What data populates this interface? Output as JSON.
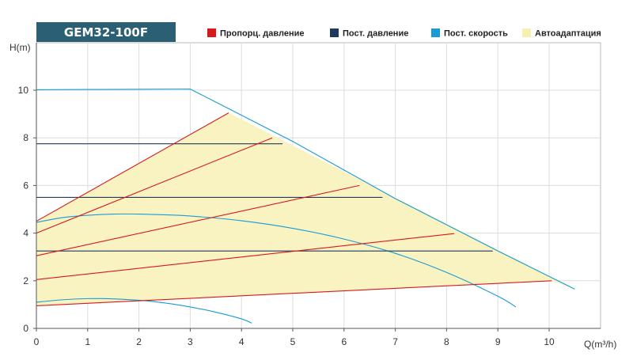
{
  "chart_data": {
    "type": "line",
    "title": "GEM32-100F",
    "xlabel": "Q(m³/h)",
    "ylabel": "H(m)",
    "xlim": [
      0,
      11
    ],
    "ylim": [
      0,
      11
    ],
    "xticks": [
      0,
      1,
      2,
      3,
      4,
      5,
      6,
      7,
      8,
      9,
      10
    ],
    "yticks": [
      0,
      2,
      4,
      6,
      8,
      10
    ],
    "grid": true,
    "legend_position": "top",
    "legend": [
      {
        "label": "Пропорц. давление",
        "color": "#d7191c"
      },
      {
        "label": "Пост. давление",
        "color": "#1f3a5f"
      },
      {
        "label": "Пост. скорость",
        "color": "#1a9ad6"
      },
      {
        "label": "Автоадаптация",
        "color": "#f7efb0"
      }
    ],
    "autoadapt_area": {
      "color": "#f9f3c2",
      "points": [
        [
          0,
          4.5
        ],
        [
          3.75,
          9.05
        ],
        [
          10.5,
          1.65
        ],
        [
          10.05,
          2.0
        ],
        [
          0,
          0.95
        ]
      ]
    },
    "series": [
      {
        "group": "Пост. скорость",
        "color": "#1a9ad6",
        "points": [
          [
            0,
            10.02
          ],
          [
            1,
            10.03
          ],
          [
            2,
            10.04
          ],
          [
            3,
            10.05
          ],
          [
            5,
            7.85
          ],
          [
            7,
            5.45
          ],
          [
            9,
            3.25
          ],
          [
            10.5,
            1.65
          ]
        ]
      },
      {
        "group": "Пост. скорость",
        "color": "#1a9ad6",
        "points": [
          [
            0,
            4.45
          ],
          [
            0.5,
            4.65
          ],
          [
            1,
            4.75
          ],
          [
            1.5,
            4.8
          ],
          [
            2,
            4.8
          ],
          [
            2.5,
            4.77
          ],
          [
            3,
            4.72
          ],
          [
            4,
            4.52
          ],
          [
            5,
            4.2
          ],
          [
            6,
            3.75
          ],
          [
            7,
            3.15
          ],
          [
            8,
            2.35
          ],
          [
            9,
            1.35
          ],
          [
            9.35,
            0.9
          ]
        ]
      },
      {
        "group": "Пост. скорость",
        "color": "#1a9ad6",
        "points": [
          [
            0,
            1.1
          ],
          [
            0.5,
            1.2
          ],
          [
            1,
            1.25
          ],
          [
            1.5,
            1.24
          ],
          [
            2,
            1.18
          ],
          [
            2.5,
            1.07
          ],
          [
            3,
            0.9
          ],
          [
            3.5,
            0.68
          ],
          [
            4,
            0.4
          ],
          [
            4.2,
            0.22
          ]
        ]
      },
      {
        "group": "Пост. давление",
        "color": "#1f3a5f",
        "points": [
          [
            0,
            7.75
          ],
          [
            4.8,
            7.75
          ]
        ]
      },
      {
        "group": "Пост. давление",
        "color": "#1f3a5f",
        "points": [
          [
            0,
            5.5
          ],
          [
            6.75,
            5.5
          ]
        ]
      },
      {
        "group": "Пост. давление",
        "color": "#1f3a5f",
        "points": [
          [
            0,
            3.25
          ],
          [
            8.9,
            3.25
          ]
        ]
      },
      {
        "group": "Пропорц. давление",
        "color": "#d7191c",
        "points": [
          [
            0,
            4.5
          ],
          [
            3.75,
            9.05
          ]
        ]
      },
      {
        "group": "Пропорц. давление",
        "color": "#d7191c",
        "points": [
          [
            0,
            4.0
          ],
          [
            4.6,
            8.0
          ]
        ]
      },
      {
        "group": "Пропорц. давление",
        "color": "#d7191c",
        "points": [
          [
            0,
            3.05
          ],
          [
            6.3,
            6.0
          ]
        ]
      },
      {
        "group": "Пропорц. давление",
        "color": "#d7191c",
        "points": [
          [
            0,
            2.05
          ],
          [
            8.15,
            3.98
          ]
        ]
      },
      {
        "group": "Пропорц. давление",
        "color": "#d7191c",
        "points": [
          [
            0,
            0.95
          ],
          [
            10.05,
            2.0
          ]
        ]
      }
    ]
  }
}
